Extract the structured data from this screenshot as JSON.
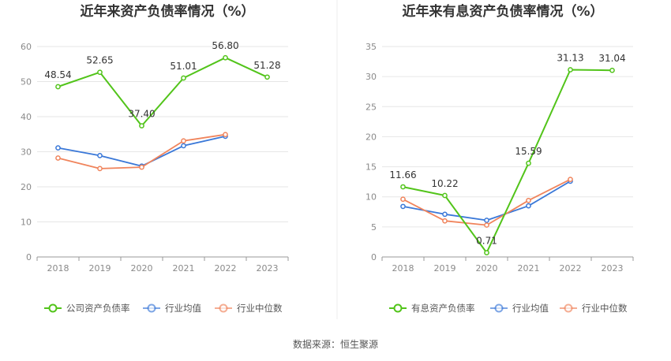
{
  "footer": {
    "source": "数据来源：恒生聚源"
  },
  "chart_data": [
    {
      "type": "line",
      "title": "近年来资产负债率情况（%）",
      "categories": [
        "2018",
        "2019",
        "2020",
        "2021",
        "2022",
        "2023"
      ],
      "ylim": [
        0,
        60
      ],
      "yticks": [
        0,
        10,
        20,
        30,
        40,
        50,
        60
      ],
      "grid": true,
      "legend_position": "bottom",
      "series": [
        {
          "name": "公司资产负债率",
          "color": "#52c41a",
          "values": [
            48.54,
            52.65,
            37.4,
            51.01,
            56.8,
            51.28
          ],
          "labels": [
            "48.54",
            "52.65",
            "37.40",
            "51.01",
            "56.80",
            "51.28"
          ]
        },
        {
          "name": "行业均值",
          "color": "#3a78d8",
          "values": [
            31.1,
            28.9,
            25.9,
            31.7,
            34.4,
            null
          ]
        },
        {
          "name": "行业中位数",
          "color": "#f0845c",
          "values": [
            28.2,
            25.2,
            25.6,
            33.1,
            34.9,
            null
          ]
        }
      ]
    },
    {
      "type": "line",
      "title": "近年来有息资产负债率情况（%）",
      "categories": [
        "2018",
        "2019",
        "2020",
        "2021",
        "2022",
        "2023"
      ],
      "ylim": [
        0,
        35
      ],
      "yticks": [
        0,
        5,
        10,
        15,
        20,
        25,
        30,
        35
      ],
      "grid": true,
      "legend_position": "bottom",
      "series": [
        {
          "name": "有息资产负债率",
          "color": "#52c41a",
          "values": [
            11.66,
            10.22,
            0.71,
            15.59,
            31.13,
            31.04
          ],
          "labels": [
            "11.66",
            "10.22",
            "0.71",
            "15.59",
            "31.13",
            "31.04"
          ]
        },
        {
          "name": "行业均值",
          "color": "#3a78d8",
          "values": [
            8.4,
            7.1,
            6.1,
            8.5,
            12.6,
            null
          ]
        },
        {
          "name": "行业中位数",
          "color": "#f0845c",
          "values": [
            9.6,
            6.0,
            5.3,
            9.4,
            12.9,
            null
          ]
        }
      ]
    }
  ]
}
